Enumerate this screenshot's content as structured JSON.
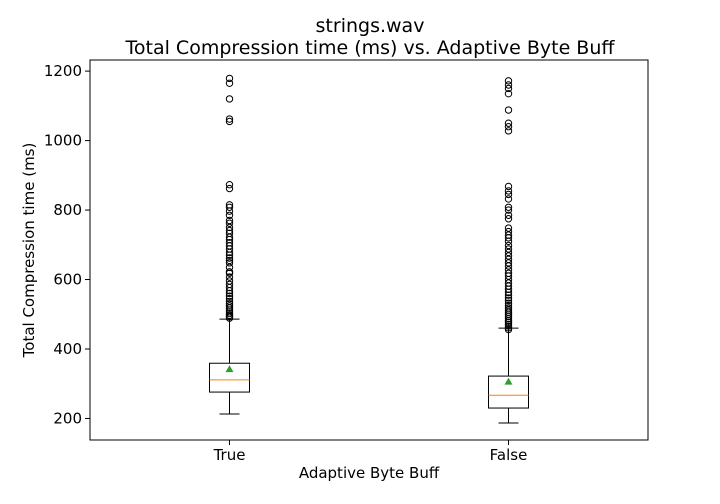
{
  "chart_data": {
    "type": "box",
    "title": "strings.wav",
    "subtitle": "Total Compression time (ms) vs. Adaptive Byte Buff",
    "xlabel": "Adaptive Byte Buff",
    "ylabel": "Total Compression time (ms)",
    "ylim": [
      138,
      1232
    ],
    "yticks": [
      200,
      400,
      600,
      800,
      1000,
      1200
    ],
    "grid": false,
    "categories": [
      "True",
      "False"
    ],
    "boxes": [
      {
        "category": "True",
        "whisker_low": 213,
        "q1": 276,
        "median": 311,
        "q3": 359,
        "whisker_high": 486,
        "mean": 342,
        "outliers": [
          489,
          493,
          497,
          502,
          507,
          512,
          518,
          524,
          530,
          537,
          545,
          552,
          560,
          568,
          577,
          586,
          596,
          607,
          618,
          622,
          635,
          648,
          655,
          662,
          670,
          678,
          688,
          697,
          706,
          715,
          722,
          733,
          741,
          750,
          762,
          770,
          785,
          797,
          808,
          815,
          862,
          873,
          1055,
          1062,
          1120,
          1165,
          1179
        ]
      },
      {
        "category": "False",
        "whisker_low": 187,
        "q1": 230,
        "median": 267,
        "q3": 322,
        "whisker_high": 460,
        "mean": 306,
        "outliers": [
          456,
          461,
          466,
          471,
          477,
          482,
          488,
          494,
          500,
          506,
          512,
          518,
          525,
          532,
          540,
          547,
          555,
          563,
          572,
          581,
          590,
          600,
          610,
          618,
          628,
          639,
          648,
          658,
          668,
          678,
          688,
          698,
          710,
          720,
          728,
          738,
          748,
          775,
          785,
          800,
          808,
          832,
          845,
          855,
          868,
          1028,
          1040,
          1050,
          1088,
          1135,
          1150,
          1160,
          1172
        ]
      }
    ],
    "colors": {
      "median": "#ff7f0e",
      "mean": "#2ca02c",
      "box": "#000000",
      "flier": "#000000"
    }
  }
}
